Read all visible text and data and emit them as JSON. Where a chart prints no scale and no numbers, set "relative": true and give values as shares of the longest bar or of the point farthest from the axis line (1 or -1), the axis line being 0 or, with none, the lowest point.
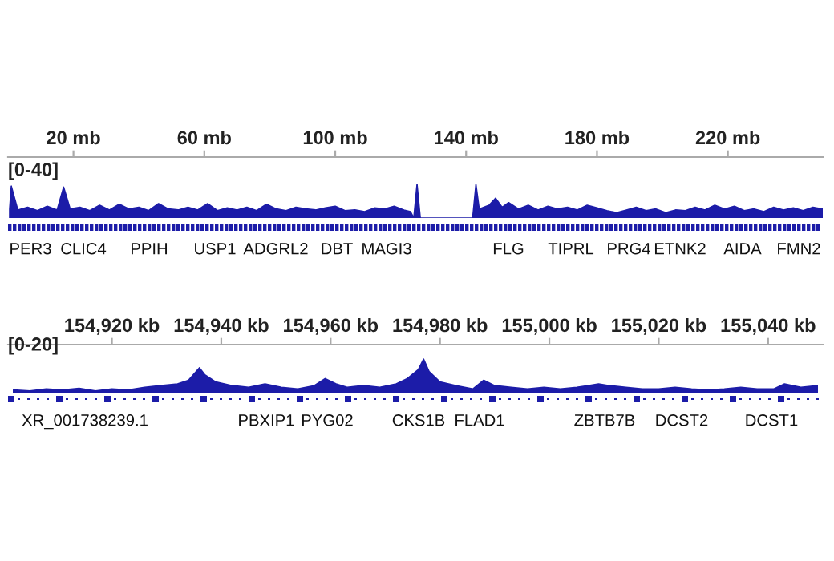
{
  "chart_data": [
    {
      "type": "area",
      "relative": true,
      "ylabel": "[0-40]",
      "xlim": [
        0,
        249
      ],
      "tick_labels": "x",
      "grid": false,
      "legend": false,
      "xticks": [
        {
          "value": 20,
          "label": "20 mb"
        },
        {
          "value": 60,
          "label": "60 mb"
        },
        {
          "value": 100,
          "label": "100 mb"
        },
        {
          "value": 140,
          "label": "140 mb"
        },
        {
          "value": 180,
          "label": "180 mb"
        },
        {
          "value": 220,
          "label": "220 mb"
        }
      ],
      "series": [
        {
          "color": "#1c1ca8",
          "x": [
            0.5,
            1,
            3,
            6,
            9,
            12,
            15,
            17,
            19,
            22,
            25,
            28,
            31,
            34,
            37,
            40,
            43,
            46,
            49,
            52,
            55,
            58,
            61,
            64,
            67,
            70,
            73,
            76,
            79,
            82,
            85,
            88,
            91,
            94,
            97,
            100,
            103,
            106,
            109,
            112,
            115,
            118,
            121,
            123,
            124,
            125,
            126,
            142,
            143,
            144,
            147,
            149,
            151,
            153,
            156,
            159,
            162,
            165,
            168,
            171,
            174,
            177,
            180,
            183,
            186,
            189,
            192,
            195,
            198,
            201,
            204,
            207,
            210,
            213,
            216,
            219,
            222,
            225,
            228,
            231,
            234,
            237,
            240,
            243,
            246,
            249
          ],
          "values": [
            0.27,
            0.95,
            0.24,
            0.32,
            0.22,
            0.35,
            0.24,
            0.92,
            0.27,
            0.32,
            0.22,
            0.38,
            0.24,
            0.41,
            0.27,
            0.32,
            0.22,
            0.43,
            0.27,
            0.24,
            0.32,
            0.24,
            0.43,
            0.22,
            0.3,
            0.24,
            0.32,
            0.22,
            0.41,
            0.27,
            0.22,
            0.32,
            0.27,
            0.24,
            0.3,
            0.35,
            0.22,
            0.24,
            0.19,
            0.3,
            0.27,
            0.35,
            0.24,
            0.19,
            0,
            1,
            0,
            0,
            1,
            0.27,
            0.38,
            0.59,
            0.32,
            0.46,
            0.27,
            0.38,
            0.24,
            0.35,
            0.27,
            0.32,
            0.24,
            0.38,
            0.3,
            0.22,
            0.16,
            0.24,
            0.32,
            0.22,
            0.27,
            0.16,
            0.24,
            0.22,
            0.32,
            0.24,
            0.38,
            0.27,
            0.35,
            0.22,
            0.27,
            0.19,
            0.32,
            0.24,
            0.3,
            0.22,
            0.32,
            0.27
          ]
        }
      ],
      "annotations": [
        "PER3",
        "CLIC4",
        "PPIH",
        "USP1",
        "ADGRL2",
        "DBT",
        "MAGI3",
        "FLG",
        "TIPRL",
        "PRG4",
        "ETNK2",
        "AIDA",
        "FMN2"
      ]
    },
    {
      "type": "area",
      "relative": true,
      "ylabel": "[0-20]",
      "xlim": [
        154901,
        155050
      ],
      "tick_labels": "x",
      "grid": false,
      "legend": false,
      "xticks": [
        {
          "value": 154920,
          "label": "154,920 kb"
        },
        {
          "value": 154940,
          "label": "154,940 kb"
        },
        {
          "value": 154960,
          "label": "154,960 kb"
        },
        {
          "value": 154980,
          "label": "154,980 kb"
        },
        {
          "value": 155000,
          "label": "155,000 kb"
        },
        {
          "value": 155020,
          "label": "155,020 kb"
        },
        {
          "value": 155040,
          "label": "155,040 kb"
        }
      ],
      "series": [
        {
          "color": "#1c1ca8",
          "x": [
            154902,
            154905,
            154908,
            154911,
            154914,
            154917,
            154920,
            154923,
            154926,
            154929,
            154932,
            154934,
            154936,
            154937,
            154939,
            154942,
            154945,
            154948,
            154951,
            154954,
            154957,
            154959,
            154961,
            154963,
            154966,
            154969,
            154972,
            154974,
            154976,
            154977,
            154978,
            154980,
            154983,
            154986,
            154988,
            154990,
            154993,
            154996,
            154999,
            155002,
            155005,
            155007,
            155009,
            155011,
            155014,
            155017,
            155020,
            155023,
            155026,
            155029,
            155032,
            155035,
            155038,
            155041,
            155043,
            155046,
            155049
          ],
          "values": [
            0.08,
            0.05,
            0.11,
            0.08,
            0.13,
            0.05,
            0.11,
            0.08,
            0.16,
            0.21,
            0.26,
            0.37,
            0.74,
            0.53,
            0.32,
            0.21,
            0.16,
            0.26,
            0.16,
            0.11,
            0.21,
            0.42,
            0.26,
            0.16,
            0.21,
            0.16,
            0.26,
            0.42,
            0.68,
            1,
            0.63,
            0.32,
            0.21,
            0.11,
            0.37,
            0.21,
            0.16,
            0.11,
            0.16,
            0.11,
            0.16,
            0.21,
            0.26,
            0.21,
            0.16,
            0.11,
            0.11,
            0.16,
            0.11,
            0.08,
            0.11,
            0.16,
            0.11,
            0.11,
            0.26,
            0.16,
            0.21
          ]
        }
      ],
      "annotations": [
        "XR_001738239.1",
        "PBXIP1",
        "PYG02",
        "CKS1B",
        "FLAD1",
        "ZBTB7B",
        "DCST2",
        "DCST1"
      ]
    }
  ]
}
